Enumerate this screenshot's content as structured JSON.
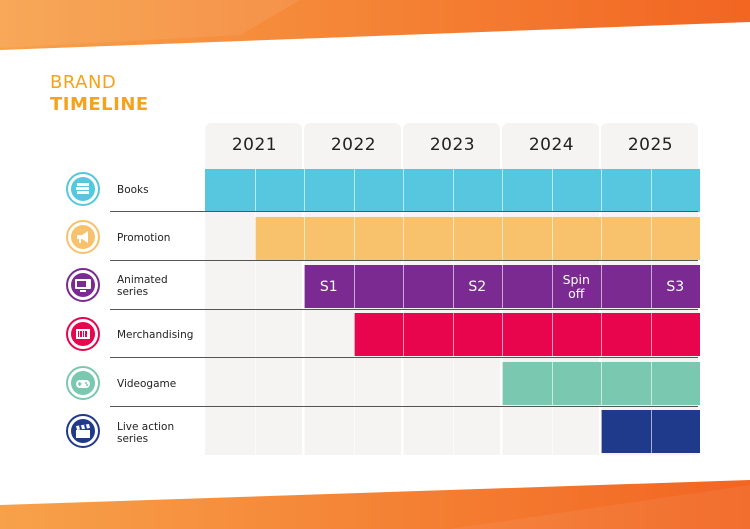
{
  "title": {
    "line1": "BRAND",
    "line2": "TIMELINE"
  },
  "years": [
    "2021",
    "2022",
    "2023",
    "2024",
    "2025"
  ],
  "rows": [
    {
      "label": "Books",
      "color": "#56c7df",
      "icon": "books-icon",
      "start": 2021.0,
      "segments": []
    },
    {
      "label": "Promotion",
      "color": "#f8c26c",
      "icon": "megaphone-icon",
      "start": 2021.5,
      "segments": []
    },
    {
      "label": "Animated series",
      "color": "#7a2a90",
      "icon": "tv-icon",
      "start": 2022.0,
      "segments": [
        "S1",
        "S2",
        "Spin off",
        "S3"
      ]
    },
    {
      "label": "Merchandising",
      "color": "#e8054d",
      "icon": "barcode-icon",
      "start": 2022.5,
      "segments": []
    },
    {
      "label": "Videogame",
      "color": "#7ac8b0",
      "icon": "gamepad-icon",
      "start": 2024.0,
      "segments": []
    },
    {
      "label": "Live action series",
      "color": "#1f3a8a",
      "icon": "clapperboard-icon",
      "start": 2025.0,
      "segments": []
    }
  ],
  "accent": "#f5a31a"
}
